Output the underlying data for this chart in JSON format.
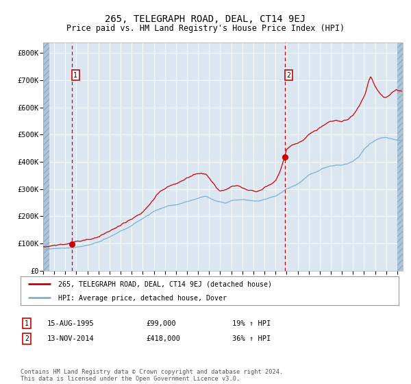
{
  "title": "265, TELEGRAPH ROAD, DEAL, CT14 9EJ",
  "subtitle": "Price paid vs. HM Land Registry's House Price Index (HPI)",
  "title_fontsize": 10,
  "subtitle_fontsize": 8.5,
  "bg_color": "#dce6f1",
  "plot_bg_color": "#dce6f1",
  "hatch_color": "#b0c4d8",
  "grid_color": "#ffffff",
  "red_line_color": "#cc0000",
  "blue_line_color": "#7bafd4",
  "dashed_line_color": "#cc0000",
  "marker_color": "#cc0000",
  "sale1_x": 1995.62,
  "sale1_y": 99000,
  "sale1_label": "1",
  "sale2_x": 2014.87,
  "sale2_y": 418000,
  "sale2_label": "2",
  "sale1_date": "15-AUG-1995",
  "sale1_price": "£99,000",
  "sale1_hpi": "19% ↑ HPI",
  "sale2_date": "13-NOV-2014",
  "sale2_price": "£418,000",
  "sale2_hpi": "36% ↑ HPI",
  "legend1": "265, TELEGRAPH ROAD, DEAL, CT14 9EJ (detached house)",
  "legend2": "HPI: Average price, detached house, Dover",
  "footer": "Contains HM Land Registry data © Crown copyright and database right 2024.\nThis data is licensed under the Open Government Licence v3.0.",
  "ylim": [
    0,
    840000
  ],
  "xlim_start": 1993.0,
  "xlim_end": 2025.5,
  "yticks": [
    0,
    100000,
    200000,
    300000,
    400000,
    500000,
    600000,
    700000,
    800000
  ],
  "ytick_labels": [
    "£0",
    "£100K",
    "£200K",
    "£300K",
    "£400K",
    "£500K",
    "£600K",
    "£700K",
    "£800K"
  ],
  "xticks": [
    1993,
    1994,
    1995,
    1996,
    1997,
    1998,
    1999,
    2000,
    2001,
    2002,
    2003,
    2004,
    2005,
    2006,
    2007,
    2008,
    2009,
    2010,
    2011,
    2012,
    2013,
    2014,
    2015,
    2016,
    2017,
    2018,
    2019,
    2020,
    2021,
    2022,
    2023,
    2024,
    2025
  ]
}
